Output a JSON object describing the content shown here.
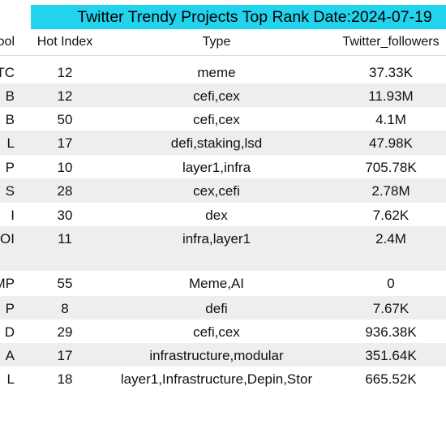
{
  "title": "Twitter Trendy Projects Top Rank Date:2024-07-19",
  "columns": {
    "symbol": "ool",
    "hot_index": "Hot Index",
    "type": "Type",
    "followers": "Twitter_followers"
  },
  "rows": [
    {
      "symbol": "TC",
      "hot_index": "12",
      "type": "meme",
      "followers": "37.33K"
    },
    {
      "symbol": "B",
      "hot_index": "12",
      "type": "cefi,cex",
      "followers": "11.93M"
    },
    {
      "symbol": "B",
      "hot_index": "50",
      "type": "cefi,cex",
      "followers": "4.1M"
    },
    {
      "symbol": "L",
      "hot_index": "17",
      "type": "defi,staking,lsd",
      "followers": "47.98K"
    },
    {
      "symbol": "P",
      "hot_index": "10",
      "type": "layer1,infra",
      "followers": "705.78K"
    },
    {
      "symbol": "S",
      "hot_index": "28",
      "type": "cex,cefi",
      "followers": "2.78M"
    },
    {
      "symbol": "I",
      "hot_index": "30",
      "type": "dex",
      "followers": "7.62K"
    },
    {
      "symbol": "COI",
      "hot_index": "11",
      "type": "infra,layer1",
      "followers": "2.4M"
    },
    {
      "symbol": "MP",
      "hot_index": "55",
      "type": "Meme,AI",
      "followers": "0"
    },
    {
      "symbol": "P",
      "hot_index": "8",
      "type": "defi",
      "followers": "7.67K"
    },
    {
      "symbol": "D",
      "hot_index": "29",
      "type": "cefi,cex",
      "followers": "936.38K"
    },
    {
      "symbol": "A",
      "hot_index": "17",
      "type": "infrastructure,modular",
      "followers": "351.64K"
    },
    {
      "symbol": "L",
      "hot_index": "18",
      "type": "layer1,Infrastructure,Depin,Stor",
      "followers": "665.52K"
    }
  ]
}
